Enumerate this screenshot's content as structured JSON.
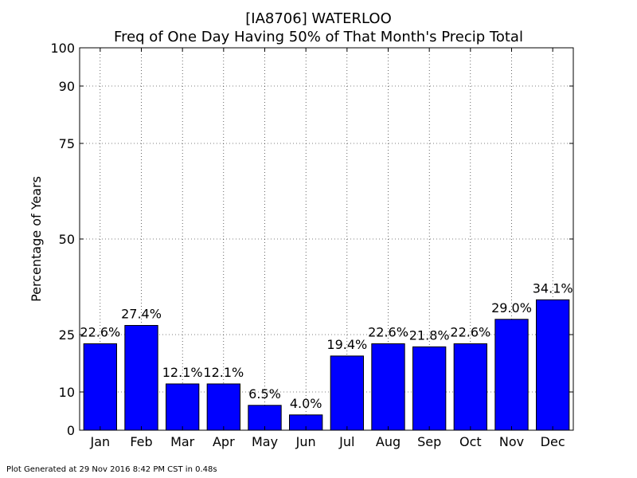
{
  "chart_data": {
    "type": "bar",
    "title": "[IA8706] WATERLOO",
    "subtitle": "Freq of One Day Having 50% of That Month's Precip Total",
    "xlabel": "",
    "ylabel": "Percentage of Years",
    "categories": [
      "Jan",
      "Feb",
      "Mar",
      "Apr",
      "May",
      "Jun",
      "Jul",
      "Aug",
      "Sep",
      "Oct",
      "Nov",
      "Dec"
    ],
    "values": [
      22.6,
      27.4,
      12.1,
      12.1,
      6.5,
      4.0,
      19.4,
      22.6,
      21.8,
      22.6,
      29.0,
      34.1
    ],
    "data_labels": [
      "22.6%",
      "27.4%",
      "12.1%",
      "12.1%",
      "6.5%",
      "4.0%",
      "19.4%",
      "22.6%",
      "21.8%",
      "22.6%",
      "29.0%",
      "34.1%"
    ],
    "yticks": [
      0,
      10,
      25,
      50,
      75,
      90,
      100
    ],
    "ylim": [
      0,
      100
    ],
    "grid": true,
    "bar_color": "#0000ff",
    "edge_color": "#000000"
  },
  "footer": "Plot Generated at 29 Nov 2016 8:42 PM CST in 0.48s"
}
